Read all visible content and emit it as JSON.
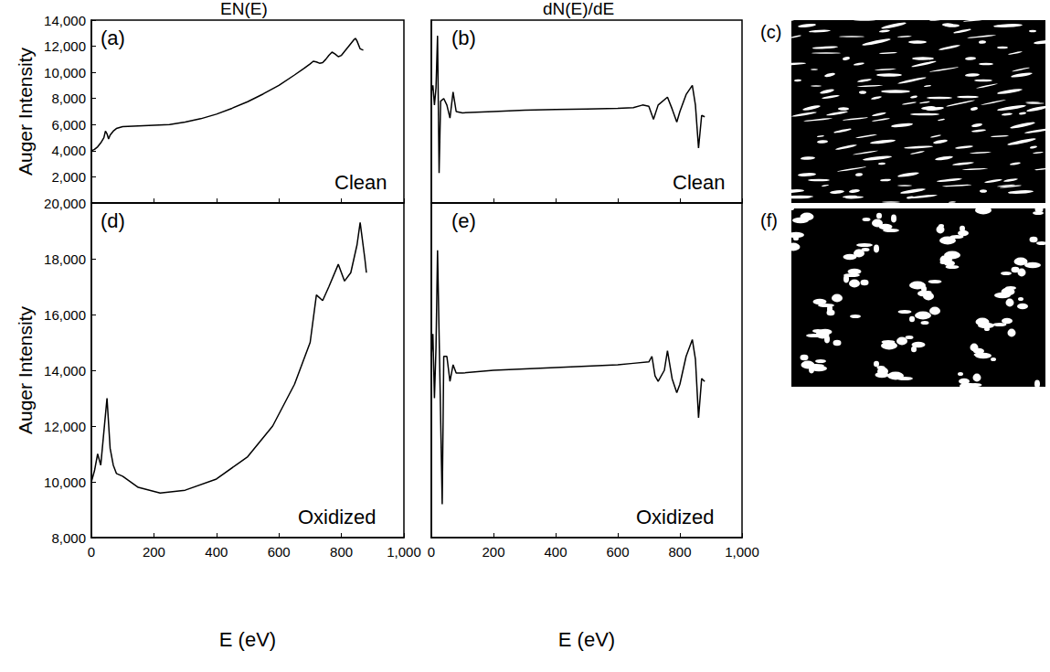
{
  "figure": {
    "column_titles": [
      "EN(E)",
      "dN(E)/dE"
    ],
    "images": [
      {
        "label": "(c)"
      },
      {
        "label": "(f)"
      }
    ]
  },
  "chart_data": [
    {
      "type": "line",
      "title": "(a)",
      "annotations": [
        "Clean"
      ],
      "ylabel": "Auger Intensity",
      "xlim": [
        0,
        1000
      ],
      "xticks": [
        0,
        200,
        400,
        600,
        800,
        1000
      ],
      "ylim": [
        0,
        14000
      ],
      "yticks": [
        2000,
        4000,
        6000,
        8000,
        10000,
        12000,
        14000
      ],
      "tick_labels": "y",
      "grid": false,
      "x": [
        0,
        10,
        20,
        30,
        40,
        45,
        50,
        55,
        60,
        70,
        80,
        100,
        150,
        200,
        250,
        300,
        350,
        400,
        450,
        500,
        550,
        600,
        650,
        680,
        700,
        710,
        720,
        730,
        740,
        750,
        760,
        770,
        780,
        790,
        800,
        810,
        820,
        830,
        840,
        845,
        850,
        860,
        870
      ],
      "values": [
        4000,
        4100,
        4300,
        4600,
        5000,
        5500,
        5300,
        4900,
        5200,
        5500,
        5700,
        5850,
        5900,
        5950,
        6000,
        6200,
        6450,
        6800,
        7250,
        7750,
        8350,
        9000,
        9800,
        10300,
        10650,
        10850,
        10800,
        10700,
        10750,
        11000,
        11300,
        11550,
        11400,
        11200,
        11300,
        11600,
        11900,
        12200,
        12500,
        12600,
        12400,
        11800,
        11700
      ],
      "color": "#000000"
    },
    {
      "type": "line",
      "title": "(b)",
      "annotations": [
        "Clean"
      ],
      "xlim": [
        0,
        1000
      ],
      "xticks": [
        0,
        200,
        400,
        600,
        800,
        1000
      ],
      "ylim": [
        0,
        14000
      ],
      "tick_labels": false,
      "grid": false,
      "x": [
        0,
        5,
        10,
        15,
        20,
        25,
        30,
        40,
        50,
        60,
        70,
        80,
        100,
        200,
        300,
        400,
        500,
        600,
        650,
        680,
        700,
        715,
        730,
        760,
        775,
        790,
        800,
        820,
        840,
        850,
        860,
        870,
        880
      ],
      "values": [
        8500,
        9000,
        7500,
        8800,
        12800,
        2300,
        7800,
        8000,
        7500,
        6500,
        8500,
        7000,
        6900,
        7000,
        7100,
        7150,
        7200,
        7250,
        7300,
        7500,
        7400,
        6400,
        7500,
        8100,
        7200,
        6200,
        7000,
        8300,
        9000,
        7500,
        4200,
        6700,
        6600
      ],
      "color": "#000000"
    },
    {
      "type": "line",
      "title": "(d)",
      "annotations": [
        "Oxidized"
      ],
      "xlabel": "E (eV)",
      "ylabel": "Auger Intensity",
      "xlim": [
        0,
        1000
      ],
      "xticks": [
        0,
        200,
        400,
        600,
        800,
        1000
      ],
      "ylim": [
        8000,
        20000
      ],
      "yticks": [
        8000,
        10000,
        12000,
        14000,
        16000,
        18000,
        20000
      ],
      "grid": false,
      "x": [
        0,
        10,
        20,
        30,
        40,
        50,
        60,
        70,
        80,
        100,
        150,
        220,
        300,
        400,
        500,
        580,
        650,
        700,
        720,
        740,
        760,
        790,
        810,
        830,
        850,
        860,
        875,
        880
      ],
      "values": [
        10000,
        10400,
        11000,
        10600,
        11800,
        13000,
        11200,
        10600,
        10300,
        10200,
        9800,
        9600,
        9700,
        10100,
        10900,
        12000,
        13500,
        15000,
        16700,
        16500,
        17000,
        17800,
        17200,
        17500,
        18500,
        19300,
        18000,
        17500
      ],
      "color": "#000000"
    },
    {
      "type": "line",
      "title": "(e)",
      "annotations": [
        "Oxidized"
      ],
      "xlabel": "E (eV)",
      "xlim": [
        0,
        1000
      ],
      "xticks": [
        0,
        200,
        400,
        600,
        800,
        1000
      ],
      "ylim": [
        8000,
        20000
      ],
      "tick_labels": "x",
      "grid": false,
      "x": [
        0,
        5,
        10,
        15,
        20,
        28,
        35,
        40,
        50,
        60,
        70,
        80,
        100,
        200,
        300,
        400,
        500,
        600,
        650,
        700,
        710,
        720,
        730,
        750,
        760,
        775,
        790,
        800,
        820,
        840,
        850,
        860,
        870,
        880
      ],
      "values": [
        14500,
        15300,
        13000,
        14800,
        18300,
        13500,
        9200,
        14500,
        14500,
        13600,
        14200,
        13900,
        13900,
        14000,
        14050,
        14100,
        14150,
        14200,
        14250,
        14300,
        14500,
        13800,
        13600,
        14000,
        14700,
        13700,
        13200,
        13500,
        14500,
        15100,
        14400,
        12300,
        13700,
        13600
      ],
      "color": "#000000"
    }
  ]
}
